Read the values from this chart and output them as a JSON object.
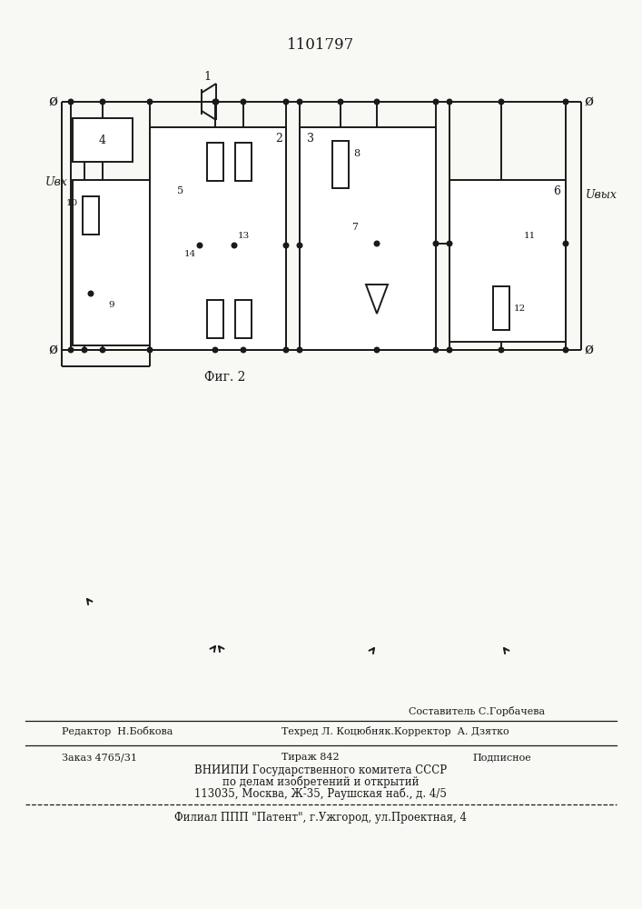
{
  "title": "1101797",
  "fig_label": "Фиг. 2",
  "background_color": "#f8f8f4",
  "line_color": "#1a1a1a",
  "text_color": "#1a1a1a",
  "editor_line": "Редактор  Н.Бобкова",
  "composer_line": "Составитель С.Горбачева",
  "techred_line": "Техред Л. Коцюбняк.Корректор  А. Дзятко",
  "order_line": "Заказ 4765/31",
  "tirazh_line": "Тираж 842",
  "podpisnoe_line": "Подписное",
  "vniiipi_line": "ВНИИПИ Государственного комитета СССР",
  "po_delam_line": "по делам изобретений и открытий",
  "address_line": "113035, Москва, Ж-35, Раушская наб., д. 4/5",
  "filial_line": "Филиал ППП \"Патент\", г.Ужгород, ул.Проектная, 4",
  "label_vx": "Uвх",
  "label_vyx": "Uвых"
}
